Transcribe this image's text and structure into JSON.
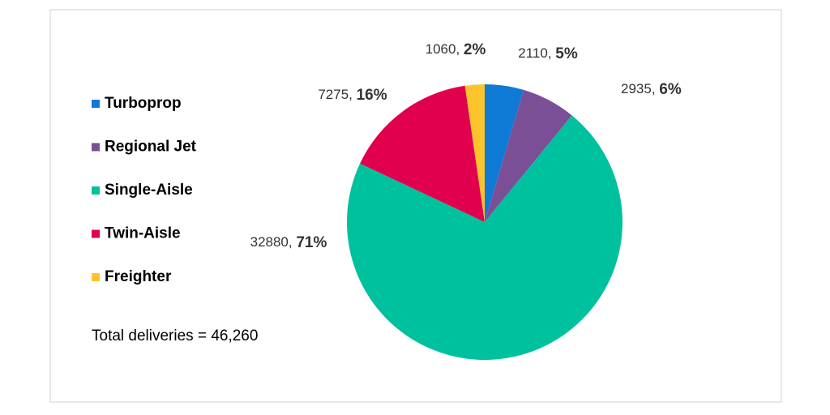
{
  "chart_data": {
    "type": "pie",
    "categories": [
      "Turboprop",
      "Regional Jet",
      "Single-Aisle",
      "Twin-Aisle",
      "Freighter"
    ],
    "values": [
      2110,
      2935,
      32880,
      7275,
      1060
    ],
    "value_labels": [
      "2110, 5%",
      "2935, 6%",
      "32880, 71%",
      "7275, 16%",
      "1060, 2%"
    ],
    "colors": [
      "#0f7ad6",
      "#7b4f96",
      "#00c19e",
      "#e0004d",
      "#fcc42c"
    ],
    "annotation": "Total deliveries = 46,260",
    "legend": "left"
  }
}
